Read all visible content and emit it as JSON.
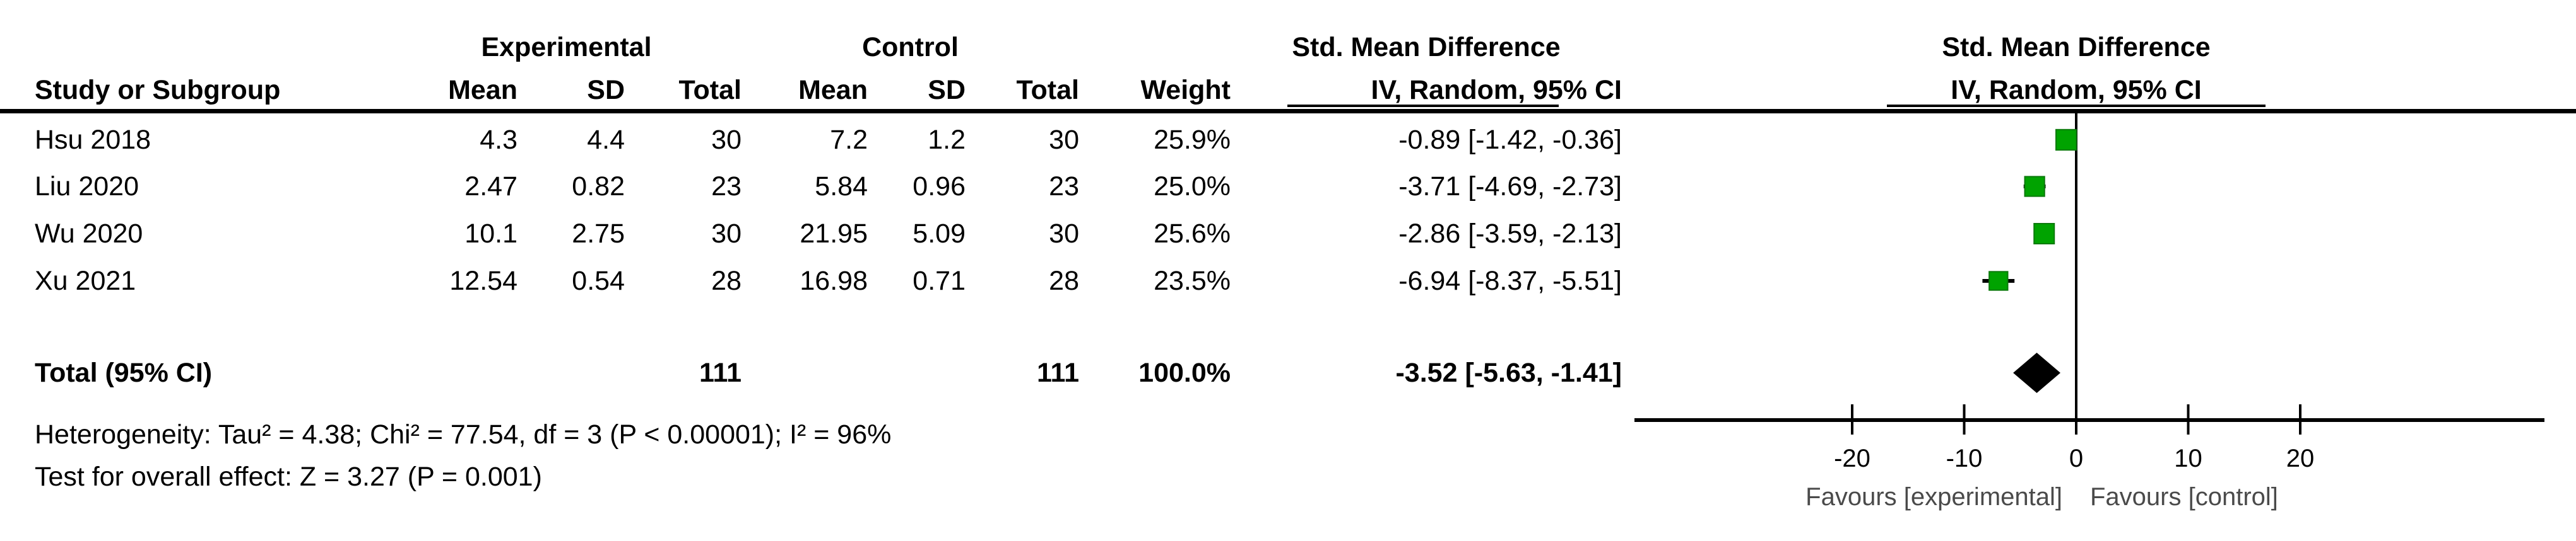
{
  "header": {
    "experimental": "Experimental",
    "control": "Control",
    "smd_table": "Std. Mean Difference",
    "smd_plot": "Std. Mean Difference",
    "ci_plot": "IV, Random, 95% CI"
  },
  "table": {
    "columns": [
      "Study or Subgroup",
      "Mean",
      "SD",
      "Total",
      "Mean",
      "SD",
      "Total",
      "Weight",
      "IV, Random, 95% CI"
    ],
    "rows": [
      [
        "Hsu 2018",
        "4.3",
        "4.4",
        "30",
        "7.2",
        "1.2",
        "30",
        "25.9%",
        "-0.89 [-1.42, -0.36]"
      ],
      [
        "Liu 2020",
        "2.47",
        "0.82",
        "23",
        "5.84",
        "0.96",
        "23",
        "25.0%",
        "-3.71 [-4.69, -2.73]"
      ],
      [
        "Wu 2020",
        "10.1",
        "2.75",
        "30",
        "21.95",
        "5.09",
        "30",
        "25.6%",
        "-2.86 [-3.59, -2.13]"
      ],
      [
        "Xu 2021",
        "12.54",
        "0.54",
        "28",
        "16.98",
        "0.71",
        "28",
        "23.5%",
        "-6.94 [-8.37, -5.51]"
      ]
    ],
    "total_row": {
      "label": "Total (95% CI)",
      "exp_total": "111",
      "ctrl_total": "111",
      "weight": "100.0%",
      "ci": "-3.52 [-5.63, -1.41]"
    }
  },
  "notes": {
    "heterogeneity": "Heterogeneity: Tau² = 4.38; Chi² = 77.54, df = 3 (P < 0.00001); I² = 96%",
    "overall_effect": "Test for overall effect: Z = 3.27 (P = 0.001)"
  },
  "colors": {
    "square_fill": "#00a300",
    "square_border": "#0b7a0b",
    "diamond": "#000000",
    "line": "#000000",
    "tick_text": "#000000",
    "favours_text": "#4a4a4a"
  },
  "chart_data": {
    "type": "scatter",
    "subtype": "forest-plot-meta-analysis",
    "effect_measure": "Std. Mean Difference",
    "model": "IV, Random, 95% CI",
    "studies": [
      {
        "name": "Hsu 2018",
        "exp_mean": 4.3,
        "exp_sd": 4.4,
        "exp_total": 30,
        "ctrl_mean": 7.2,
        "ctrl_sd": 1.2,
        "ctrl_total": 30,
        "weight_pct": 25.9,
        "smd": -0.89,
        "ci_low": -1.42,
        "ci_high": -0.36
      },
      {
        "name": "Liu 2020",
        "exp_mean": 2.47,
        "exp_sd": 0.82,
        "exp_total": 23,
        "ctrl_mean": 5.84,
        "ctrl_sd": 0.96,
        "ctrl_total": 23,
        "weight_pct": 25.0,
        "smd": -3.71,
        "ci_low": -4.69,
        "ci_high": -2.73
      },
      {
        "name": "Wu 2020",
        "exp_mean": 10.1,
        "exp_sd": 2.75,
        "exp_total": 30,
        "ctrl_mean": 21.95,
        "ctrl_sd": 5.09,
        "ctrl_total": 30,
        "weight_pct": 25.6,
        "smd": -2.86,
        "ci_low": -3.59,
        "ci_high": -2.13
      },
      {
        "name": "Xu 2021",
        "exp_mean": 12.54,
        "exp_sd": 0.54,
        "exp_total": 28,
        "ctrl_mean": 16.98,
        "ctrl_sd": 0.71,
        "ctrl_total": 28,
        "weight_pct": 23.5,
        "smd": -6.94,
        "ci_low": -8.37,
        "ci_high": -5.51
      }
    ],
    "total": {
      "label": "Total (95% CI)",
      "n_exp": 111,
      "n_ctrl": 111,
      "weight_pct": 100.0,
      "smd": -3.52,
      "ci_low": -5.63,
      "ci_high": -1.41
    },
    "heterogeneity": {
      "tau2": 4.38,
      "chi2": 77.54,
      "df": 3,
      "p": "< 0.00001",
      "i2_pct": 96
    },
    "overall_effect": {
      "z": 3.27,
      "p": "0.001"
    },
    "axis": {
      "ticks": [
        -20,
        -10,
        0,
        10,
        20
      ],
      "xlim": [
        -39,
        42
      ],
      "zero_line": 0,
      "favours_left": "Favours [experimental]",
      "favours_right": "Favours [control]",
      "grid": false
    }
  }
}
